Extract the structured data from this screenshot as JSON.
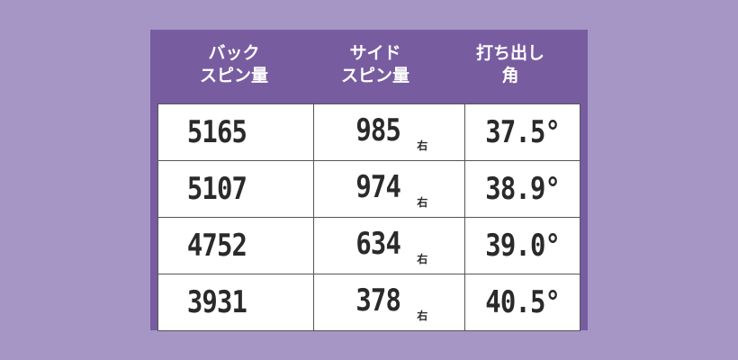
{
  "headers": [
    [
      "バック",
      "スピン量"
    ],
    [
      "サイド",
      "スピン量"
    ],
    [
      "打ち出し",
      "角"
    ]
  ],
  "rows": [
    {
      "back": "5165",
      "side": "985",
      "dir": "右",
      "angle": "37.5°"
    },
    {
      "back": "5107",
      "side": "974",
      "dir": "右",
      "angle": "38.9°"
    },
    {
      "back": "4752",
      "side": "634",
      "dir": "右",
      "angle": "39.0°"
    },
    {
      "back": "3931",
      "side": "378",
      "dir": "右",
      "angle": "40.5°"
    }
  ],
  "colors": {
    "background": "#a596c6",
    "header": "#785ca0",
    "cell": "#ffffff"
  }
}
